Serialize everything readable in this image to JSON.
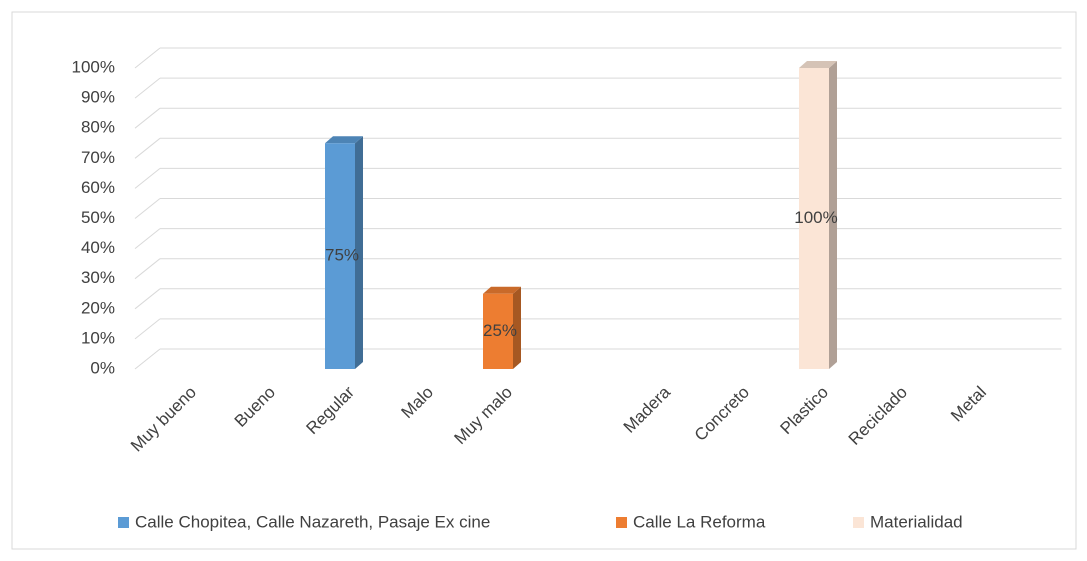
{
  "chart_data": {
    "type": "bar3d",
    "categories": [
      "Muy bueno",
      "Bueno",
      "Regular",
      "Malo",
      "Muy malo",
      null,
      "Madera",
      "Concreto",
      "Plastico",
      "Reciclado",
      "Metal"
    ],
    "series": [
      {
        "name": "Calle Chopitea, Calle Nazareth, Pasaje Ex cine",
        "color": "#5b9bd5",
        "values": [
          null,
          null,
          75,
          null,
          null,
          null,
          null,
          null,
          null,
          null,
          null
        ],
        "value_labels": [
          null,
          null,
          "75%",
          null,
          null,
          null,
          null,
          null,
          null,
          null,
          null
        ]
      },
      {
        "name": "Calle La Reforma",
        "color": "#ed7d31",
        "values": [
          null,
          null,
          null,
          null,
          25,
          null,
          null,
          null,
          null,
          null,
          null
        ],
        "value_labels": [
          null,
          null,
          null,
          null,
          "25%",
          null,
          null,
          null,
          null,
          null,
          null
        ]
      },
      {
        "name": "Materialidad",
        "color": "#fbe5d6",
        "values": [
          null,
          null,
          null,
          null,
          null,
          null,
          null,
          null,
          100,
          null,
          null
        ],
        "value_labels": [
          null,
          null,
          null,
          null,
          null,
          null,
          null,
          null,
          "100%",
          null,
          null
        ]
      }
    ],
    "ylim": [
      0,
      100
    ],
    "yticks": [
      {
        "value": 0,
        "label": "0%"
      },
      {
        "value": 10,
        "label": "10%"
      },
      {
        "value": 20,
        "label": "20%"
      },
      {
        "value": 30,
        "label": "30%"
      },
      {
        "value": 40,
        "label": "40%"
      },
      {
        "value": 50,
        "label": "50%"
      },
      {
        "value": 60,
        "label": "60%"
      },
      {
        "value": 70,
        "label": "70%"
      },
      {
        "value": 80,
        "label": "80%"
      },
      {
        "value": 90,
        "label": "90%"
      },
      {
        "value": 100,
        "label": "100%"
      }
    ],
    "grid": true,
    "legend": "bottom"
  }
}
